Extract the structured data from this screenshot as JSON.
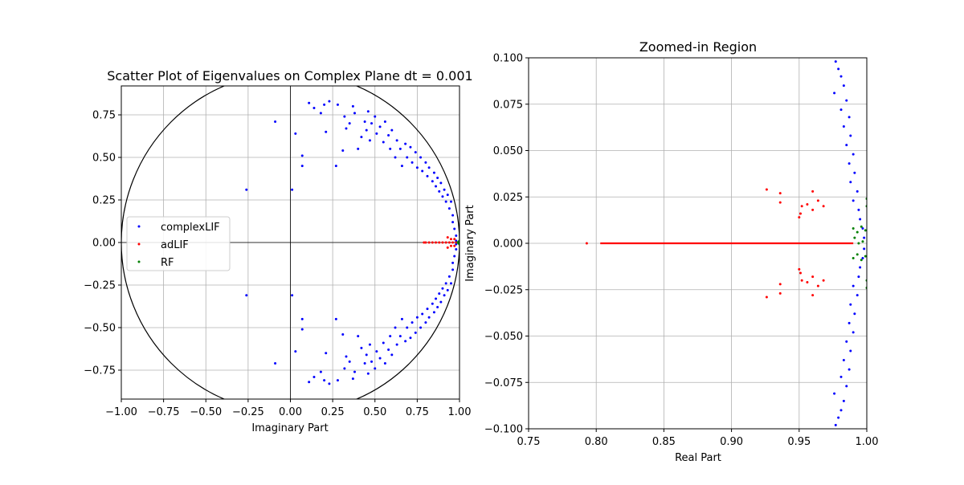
{
  "chart_data": [
    {
      "type": "scatter",
      "title": "Scatter Plot of Eigenvalues on Complex Plane dt = 0.001",
      "xlabel": "Imaginary Part",
      "ylabel": "",
      "xlim": [
        -1.0,
        1.0
      ],
      "ylim": [
        -0.92,
        0.92
      ],
      "xticks": [
        "−1.00",
        "−0.75",
        "−0.50",
        "−0.25",
        "0.00",
        "0.25",
        "0.50",
        "0.75",
        "1.00"
      ],
      "yticks": [
        "−0.75",
        "−0.50",
        "−0.25",
        "0.00",
        "0.25",
        "0.50",
        "0.75"
      ],
      "grid": true,
      "legend_position": "center-left",
      "unit_circle": true,
      "axis_lines_through_origin": true,
      "series": [
        {
          "name": "complexLIF",
          "color": "#0000ff",
          "points": [
            [
              -0.26,
              0.31
            ],
            [
              -0.26,
              -0.31
            ],
            [
              -0.09,
              0.71
            ],
            [
              -0.09,
              -0.71
            ],
            [
              0.01,
              0.31
            ],
            [
              0.01,
              -0.31
            ],
            [
              0.03,
              0.64
            ],
            [
              0.03,
              -0.64
            ],
            [
              0.07,
              0.51
            ],
            [
              0.07,
              -0.51
            ],
            [
              0.07,
              0.45
            ],
            [
              0.07,
              -0.45
            ],
            [
              0.11,
              0.82
            ],
            [
              0.11,
              -0.82
            ],
            [
              0.14,
              0.79
            ],
            [
              0.14,
              -0.79
            ],
            [
              0.18,
              0.76
            ],
            [
              0.18,
              -0.76
            ],
            [
              0.2,
              0.81
            ],
            [
              0.2,
              -0.81
            ],
            [
              0.21,
              0.65
            ],
            [
              0.21,
              -0.65
            ],
            [
              0.23,
              0.83
            ],
            [
              0.23,
              -0.83
            ],
            [
              0.27,
              0.45
            ],
            [
              0.27,
              -0.45
            ],
            [
              0.28,
              0.81
            ],
            [
              0.28,
              -0.81
            ],
            [
              0.31,
              0.54
            ],
            [
              0.31,
              -0.54
            ],
            [
              0.32,
              0.74
            ],
            [
              0.32,
              -0.74
            ],
            [
              0.33,
              0.67
            ],
            [
              0.33,
              -0.67
            ],
            [
              0.35,
              0.7
            ],
            [
              0.35,
              -0.7
            ],
            [
              0.37,
              0.8
            ],
            [
              0.37,
              -0.8
            ],
            [
              0.38,
              0.76
            ],
            [
              0.38,
              -0.76
            ],
            [
              0.4,
              0.55
            ],
            [
              0.4,
              -0.55
            ],
            [
              0.42,
              0.62
            ],
            [
              0.42,
              -0.62
            ],
            [
              0.44,
              0.71
            ],
            [
              0.44,
              -0.71
            ],
            [
              0.45,
              0.66
            ],
            [
              0.45,
              -0.66
            ],
            [
              0.46,
              0.77
            ],
            [
              0.46,
              -0.77
            ],
            [
              0.47,
              0.6
            ],
            [
              0.47,
              -0.6
            ],
            [
              0.48,
              0.7
            ],
            [
              0.48,
              -0.7
            ],
            [
              0.5,
              0.74
            ],
            [
              0.5,
              -0.74
            ],
            [
              0.51,
              0.64
            ],
            [
              0.51,
              -0.64
            ],
            [
              0.53,
              0.68
            ],
            [
              0.53,
              -0.68
            ],
            [
              0.55,
              0.59
            ],
            [
              0.55,
              -0.59
            ],
            [
              0.56,
              0.71
            ],
            [
              0.56,
              -0.71
            ],
            [
              0.58,
              0.63
            ],
            [
              0.58,
              -0.63
            ],
            [
              0.59,
              0.55
            ],
            [
              0.59,
              -0.55
            ],
            [
              0.6,
              0.66
            ],
            [
              0.6,
              -0.66
            ],
            [
              0.62,
              0.5
            ],
            [
              0.62,
              -0.5
            ],
            [
              0.63,
              0.6
            ],
            [
              0.63,
              -0.6
            ],
            [
              0.65,
              0.55
            ],
            [
              0.65,
              -0.55
            ],
            [
              0.66,
              0.45
            ],
            [
              0.66,
              -0.45
            ],
            [
              0.68,
              0.58
            ],
            [
              0.68,
              -0.58
            ],
            [
              0.69,
              0.5
            ],
            [
              0.69,
              -0.5
            ],
            [
              0.71,
              0.56
            ],
            [
              0.71,
              -0.56
            ],
            [
              0.72,
              0.47
            ],
            [
              0.72,
              -0.47
            ],
            [
              0.74,
              0.53
            ],
            [
              0.74,
              -0.53
            ],
            [
              0.75,
              0.44
            ],
            [
              0.75,
              -0.44
            ],
            [
              0.77,
              0.5
            ],
            [
              0.77,
              -0.5
            ],
            [
              0.78,
              0.42
            ],
            [
              0.78,
              -0.42
            ],
            [
              0.8,
              0.47
            ],
            [
              0.8,
              -0.47
            ],
            [
              0.81,
              0.39
            ],
            [
              0.81,
              -0.39
            ],
            [
              0.82,
              0.44
            ],
            [
              0.82,
              -0.44
            ],
            [
              0.84,
              0.36
            ],
            [
              0.84,
              -0.36
            ],
            [
              0.85,
              0.41
            ],
            [
              0.85,
              -0.41
            ],
            [
              0.86,
              0.33
            ],
            [
              0.86,
              -0.33
            ],
            [
              0.87,
              0.38
            ],
            [
              0.87,
              -0.38
            ],
            [
              0.88,
              0.3
            ],
            [
              0.88,
              -0.3
            ],
            [
              0.89,
              0.35
            ],
            [
              0.89,
              -0.35
            ],
            [
              0.9,
              0.27
            ],
            [
              0.9,
              -0.27
            ],
            [
              0.91,
              0.31
            ],
            [
              0.91,
              -0.31
            ],
            [
              0.92,
              0.24
            ],
            [
              0.92,
              -0.24
            ],
            [
              0.93,
              0.28
            ],
            [
              0.93,
              -0.28
            ],
            [
              0.94,
              0.2
            ],
            [
              0.94,
              -0.2
            ],
            [
              0.95,
              0.24
            ],
            [
              0.95,
              -0.24
            ],
            [
              0.96,
              0.16
            ],
            [
              0.96,
              -0.16
            ],
            [
              0.96,
              0.12
            ],
            [
              0.96,
              -0.12
            ],
            [
              0.97,
              0.08
            ],
            [
              0.97,
              -0.08
            ],
            [
              0.98,
              0.04
            ],
            [
              0.98,
              -0.04
            ],
            [
              0.98,
              0.01
            ],
            [
              0.98,
              -0.01
            ]
          ]
        },
        {
          "name": "adLIF",
          "color": "#ff0000",
          "points": [
            [
              0.79,
              0.0
            ],
            [
              0.8,
              0.0
            ],
            [
              0.82,
              0.0
            ],
            [
              0.84,
              0.0
            ],
            [
              0.86,
              0.0
            ],
            [
              0.88,
              0.0
            ],
            [
              0.9,
              0.0
            ],
            [
              0.92,
              0.0
            ],
            [
              0.93,
              0.03
            ],
            [
              0.93,
              -0.03
            ],
            [
              0.94,
              0.0
            ],
            [
              0.95,
              0.02
            ],
            [
              0.95,
              -0.02
            ],
            [
              0.96,
              0.0
            ],
            [
              0.97,
              0.02
            ],
            [
              0.97,
              -0.02
            ],
            [
              0.98,
              0.0
            ]
          ]
        },
        {
          "name": "RF",
          "color": "#008000",
          "points": [
            [
              0.99,
              0.0
            ],
            [
              0.995,
              0.005
            ],
            [
              0.995,
              -0.005
            ],
            [
              1.0,
              0.01
            ],
            [
              1.0,
              -0.01
            ]
          ]
        }
      ]
    },
    {
      "type": "scatter",
      "title": "Zoomed-in Region",
      "xlabel": "Real Part",
      "ylabel": "Imaginary Part",
      "xlim": [
        0.75,
        1.0
      ],
      "ylim": [
        -0.1,
        0.1
      ],
      "xticks": [
        "0.75",
        "0.80",
        "0.85",
        "0.90",
        "0.95",
        "1.00"
      ],
      "yticks": [
        "−0.100",
        "−0.075",
        "−0.050",
        "−0.025",
        "0.000",
        "0.025",
        "0.050",
        "0.075",
        "0.100"
      ],
      "grid": true,
      "series": [
        {
          "name": "complexLIF",
          "color": "#0000ff",
          "points": [
            [
              0.977,
              0.098
            ],
            [
              0.979,
              0.094
            ],
            [
              0.981,
              0.09
            ],
            [
              0.983,
              0.085
            ],
            [
              0.976,
              0.081
            ],
            [
              0.985,
              0.077
            ],
            [
              0.981,
              0.072
            ],
            [
              0.987,
              0.068
            ],
            [
              0.983,
              0.063
            ],
            [
              0.988,
              0.058
            ],
            [
              0.985,
              0.053
            ],
            [
              0.99,
              0.048
            ],
            [
              0.987,
              0.043
            ],
            [
              0.991,
              0.038
            ],
            [
              0.988,
              0.033
            ],
            [
              0.993,
              0.028
            ],
            [
              0.99,
              0.023
            ],
            [
              0.994,
              0.018
            ],
            [
              0.995,
              0.013
            ],
            [
              0.997,
              0.008
            ],
            [
              0.998,
              0.003
            ],
            [
              0.977,
              -0.098
            ],
            [
              0.979,
              -0.094
            ],
            [
              0.981,
              -0.09
            ],
            [
              0.983,
              -0.085
            ],
            [
              0.976,
              -0.081
            ],
            [
              0.985,
              -0.077
            ],
            [
              0.981,
              -0.072
            ],
            [
              0.987,
              -0.068
            ],
            [
              0.983,
              -0.063
            ],
            [
              0.988,
              -0.058
            ],
            [
              0.985,
              -0.053
            ],
            [
              0.99,
              -0.048
            ],
            [
              0.987,
              -0.043
            ],
            [
              0.991,
              -0.038
            ],
            [
              0.988,
              -0.033
            ],
            [
              0.993,
              -0.028
            ],
            [
              0.99,
              -0.023
            ],
            [
              0.994,
              -0.018
            ],
            [
              0.995,
              -0.013
            ],
            [
              0.997,
              -0.008
            ],
            [
              0.998,
              -0.003
            ]
          ]
        },
        {
          "name": "adLIF",
          "color": "#ff0000",
          "points": [
            [
              0.793,
              0.0
            ],
            [
              0.926,
              0.029
            ],
            [
              0.926,
              -0.029
            ],
            [
              0.936,
              0.027
            ],
            [
              0.936,
              -0.027
            ],
            [
              0.936,
              0.022
            ],
            [
              0.936,
              -0.022
            ],
            [
              0.95,
              0.014
            ],
            [
              0.95,
              -0.014
            ],
            [
              0.951,
              0.016
            ],
            [
              0.951,
              -0.016
            ],
            [
              0.952,
              0.02
            ],
            [
              0.952,
              -0.02
            ],
            [
              0.956,
              0.021
            ],
            [
              0.956,
              -0.021
            ],
            [
              0.96,
              0.028
            ],
            [
              0.96,
              -0.028
            ],
            [
              0.964,
              0.023
            ],
            [
              0.964,
              -0.023
            ],
            [
              0.968,
              0.02
            ],
            [
              0.968,
              -0.02
            ],
            [
              0.96,
              0.018
            ],
            [
              0.96,
              -0.018
            ]
          ],
          "line_segment": [
            0.803,
            0.99
          ]
        },
        {
          "name": "RF",
          "color": "#008000",
          "points": [
            [
              0.99,
              0.008
            ],
            [
              0.993,
              0.006
            ],
            [
              0.996,
              0.009
            ],
            [
              0.999,
              0.007
            ],
            [
              0.99,
              -0.008
            ],
            [
              0.993,
              -0.006
            ],
            [
              0.996,
              -0.009
            ],
            [
              0.999,
              -0.007
            ],
            [
              0.991,
              0.003
            ],
            [
              0.994,
              0.0
            ],
            [
              0.997,
              0.001
            ],
            [
              1.0,
              0.02
            ],
            [
              1.0,
              -0.02
            ],
            [
              1.0,
              0.024
            ],
            [
              1.0,
              -0.024
            ]
          ]
        }
      ]
    }
  ]
}
